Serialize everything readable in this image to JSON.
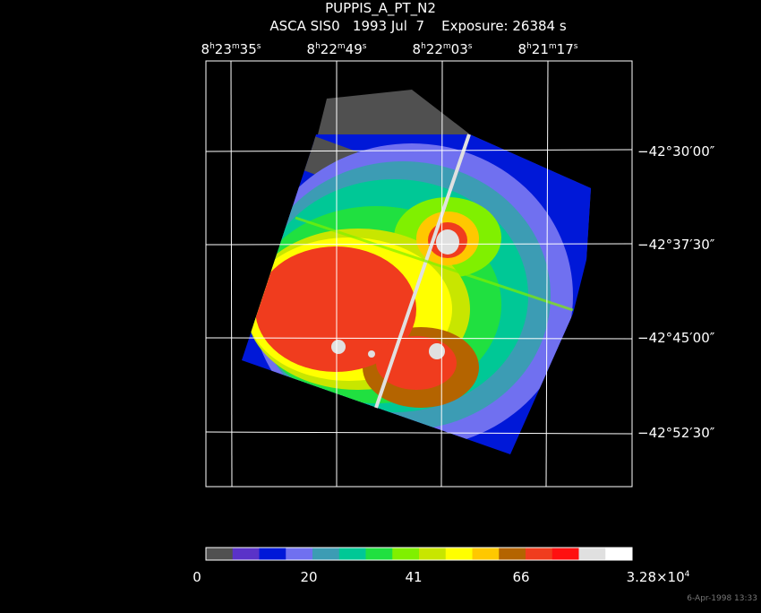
{
  "header": {
    "title": "PUPPIS_A_PT_N2",
    "subtitle": "ASCA SIS0   1993 Jul  7    Exposure: 26384 s"
  },
  "ra_labels": [
    [
      "8",
      "h",
      "23",
      "m",
      "35",
      "s"
    ],
    [
      "8",
      "h",
      "22",
      "m",
      "49",
      "s"
    ],
    [
      "8",
      "h",
      "22",
      "m",
      "03",
      "s"
    ],
    [
      "8",
      "h",
      "21",
      "m",
      "17",
      "s"
    ]
  ],
  "dec_labels": [
    "−42°30′00″",
    "−42°37′30″",
    "−42°45′00″",
    "−42°52′30″"
  ],
  "colorbar": {
    "colors": [
      "#505050",
      "#5a32c8",
      "#0018d8",
      "#7070f0",
      "#3c9cb4",
      "#00c896",
      "#20e040",
      "#80f000",
      "#c8e600",
      "#ffff00",
      "#ffc800",
      "#b46400",
      "#f03c1e",
      "#ff1010",
      "#e0e0e0",
      "#ffffff"
    ],
    "labels": [
      [
        "0"
      ],
      [
        "20"
      ],
      [
        "41"
      ],
      [
        "66"
      ],
      [
        "3.28×10",
        "4"
      ]
    ]
  },
  "footer": "6-Apr-1998 13:33"
}
